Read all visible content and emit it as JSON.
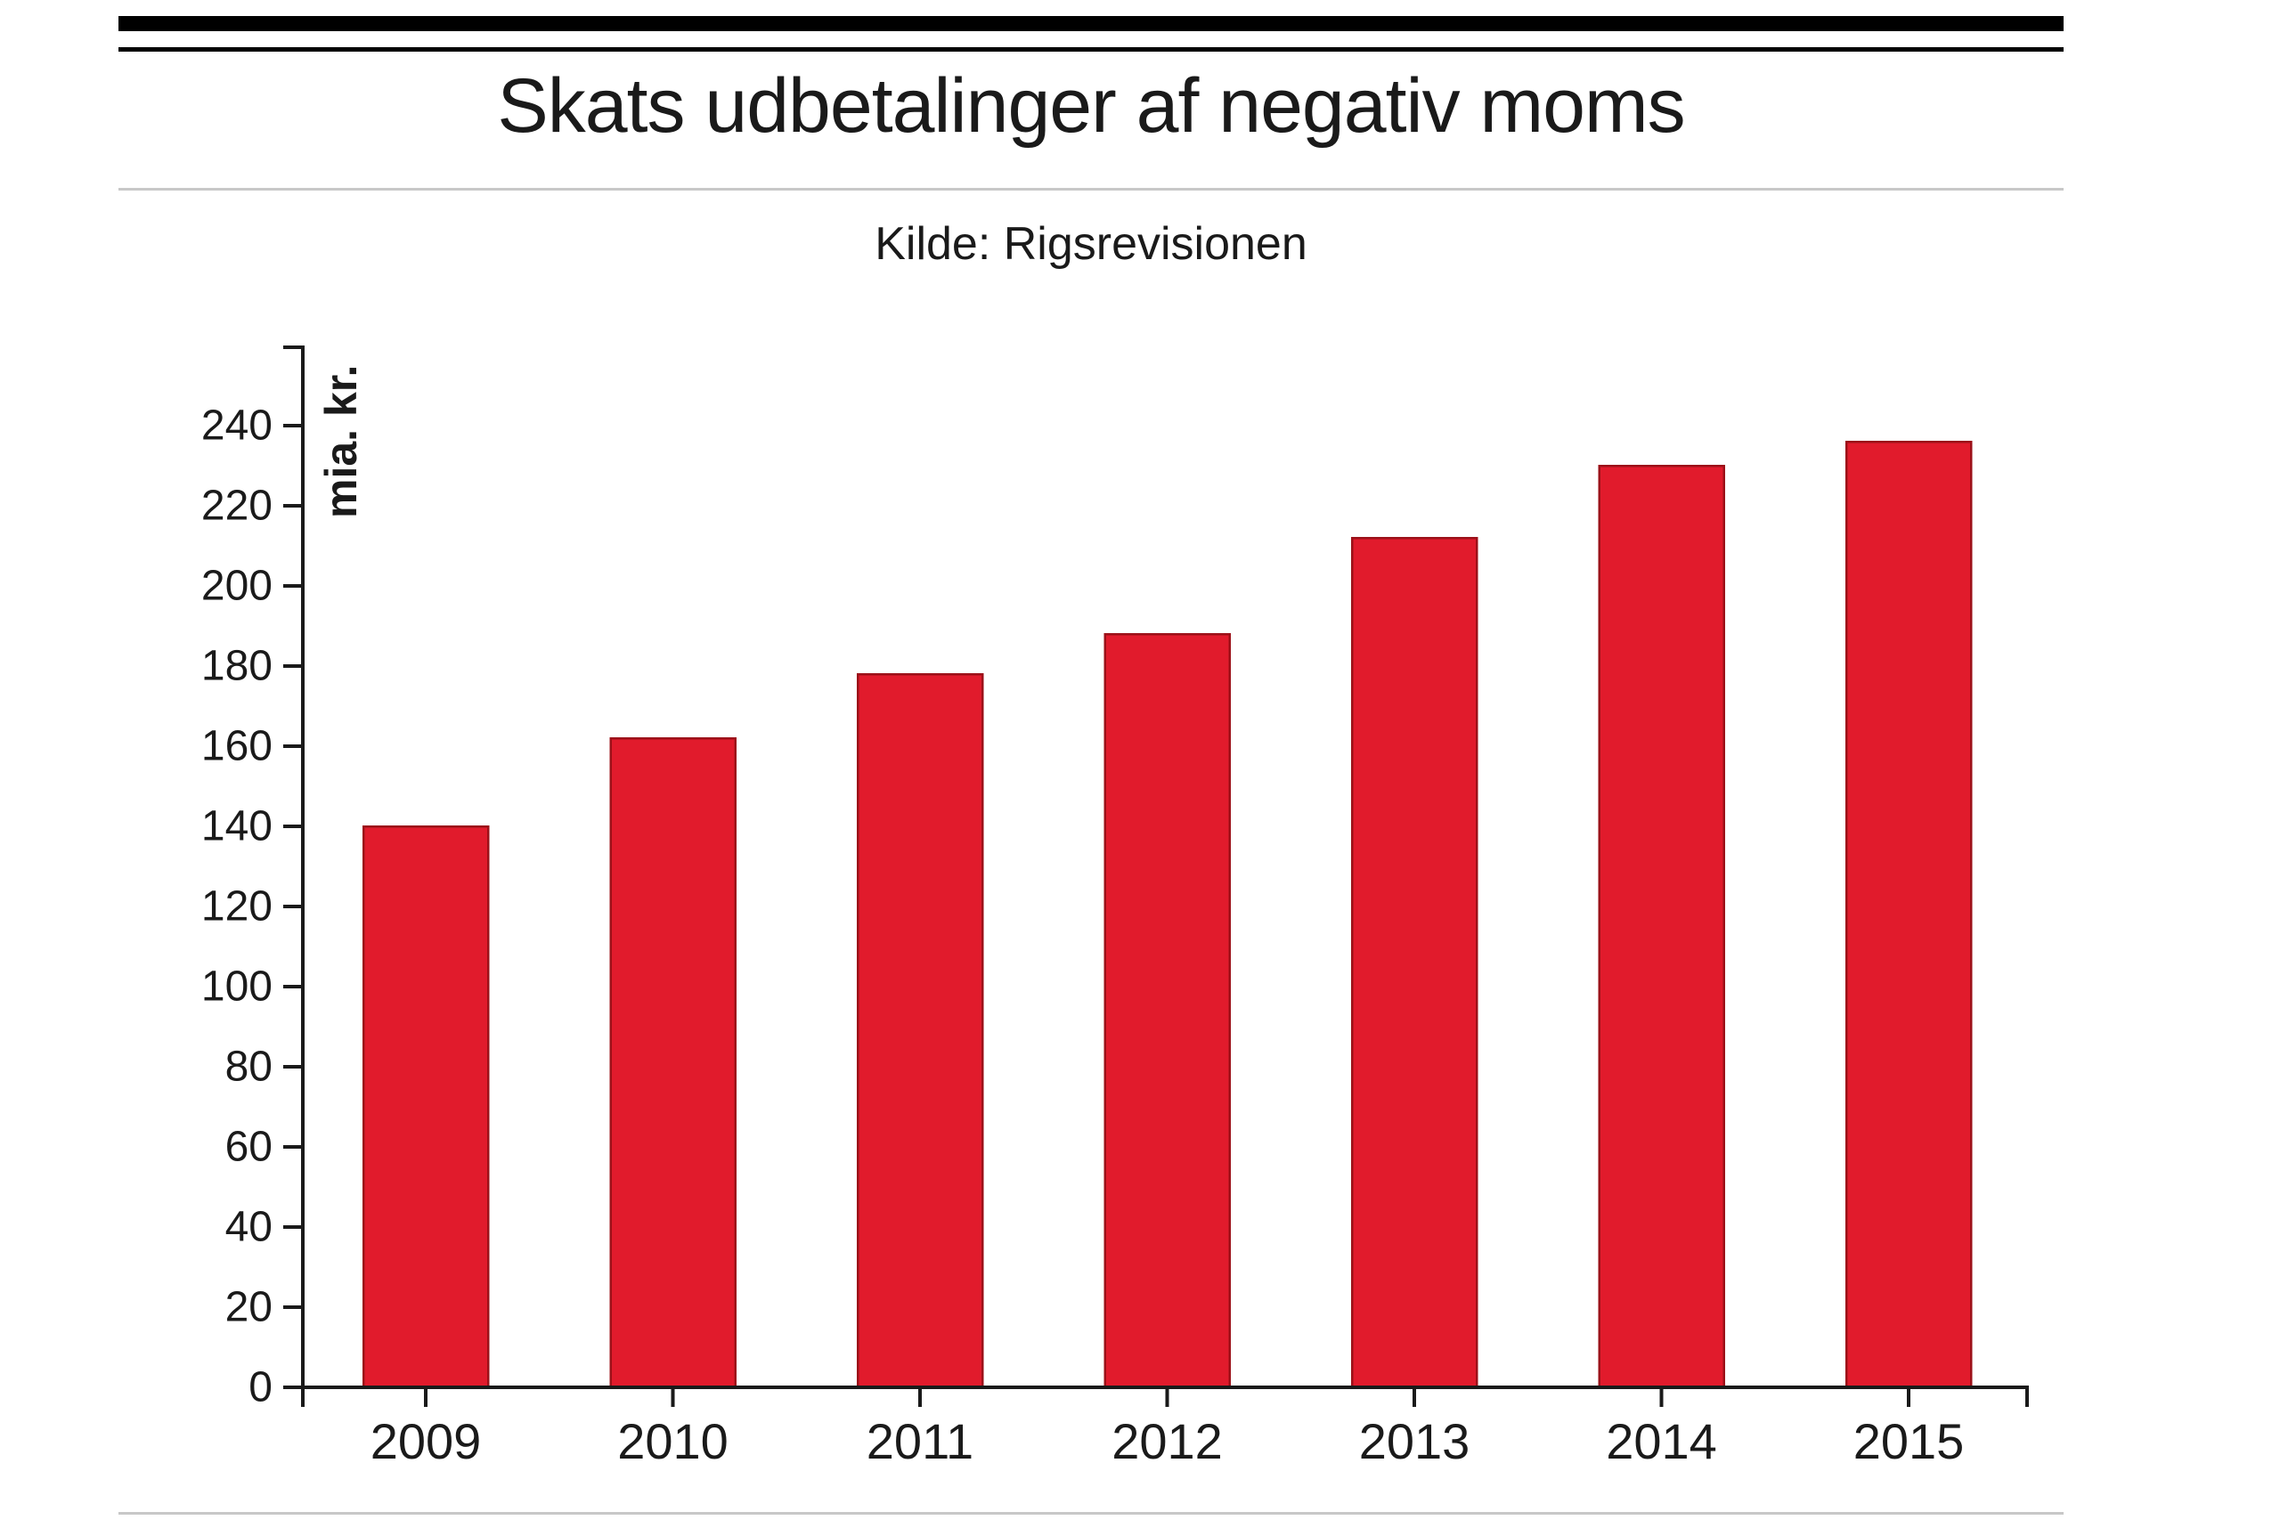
{
  "styles": {
    "background": "#ffffff",
    "rule_color": "#000000",
    "divider_color": "#c8c8c8",
    "text_color": "#1a1a1a"
  },
  "chart_data": {
    "type": "bar",
    "title": "Skats udbetalinger af negativ moms",
    "source": "Kilde: Rigsrevisionen",
    "categories": [
      "2009",
      "2010",
      "2011",
      "2012",
      "2013",
      "2014",
      "2015"
    ],
    "values": [
      140,
      162,
      178,
      188,
      212,
      230,
      236
    ],
    "xlabel": "",
    "ylabel": "mia. kr.",
    "ylim": [
      0,
      240
    ],
    "ytick_step": 20,
    "grid": false,
    "legend": "none",
    "bar_color": "#e11b2c",
    "bar_border_color": "#9c1119",
    "axis_color": "#1a1a1a"
  }
}
